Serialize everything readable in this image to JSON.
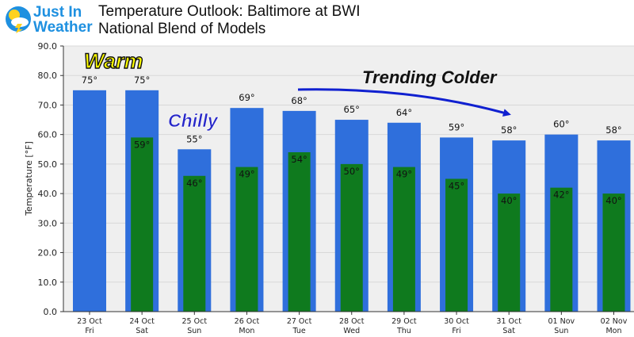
{
  "logo": {
    "line1": "Just In",
    "line2": "Weather"
  },
  "header": {
    "title": "Temperature Outlook: Baltimore at BWI",
    "subtitle": "National Blend of Models"
  },
  "annotations": {
    "warm": "Warm",
    "chilly": "Chilly",
    "trend": "Trending Colder"
  },
  "colors": {
    "high_bar": "#2f6fdc",
    "low_bar": "#0f7a1e",
    "plot_bg": "#efefef",
    "arrow": "#1020d0",
    "warm_text": "#ffff00",
    "chilly_text": "#2828c8",
    "logo_blue": "#1e90e0"
  },
  "chart_data": {
    "type": "bar",
    "ylabel": "Temperature [°F]",
    "ylim": [
      0,
      90
    ],
    "yticks": [
      "0.0",
      "10.0",
      "20.0",
      "30.0",
      "40.0",
      "50.0",
      "60.0",
      "70.0",
      "80.0",
      "90.0"
    ],
    "categories": [
      [
        "23 Oct",
        "Fri"
      ],
      [
        "24 Oct",
        "Sat"
      ],
      [
        "25 Oct",
        "Sun"
      ],
      [
        "26 Oct",
        "Mon"
      ],
      [
        "27 Oct",
        "Tue"
      ],
      [
        "28 Oct",
        "Wed"
      ],
      [
        "29 Oct",
        "Thu"
      ],
      [
        "30 Oct",
        "Fri"
      ],
      [
        "31 Oct",
        "Sat"
      ],
      [
        "01 Nov",
        "Sun"
      ],
      [
        "02 Nov",
        "Mon"
      ]
    ],
    "series": [
      {
        "values": [
          75,
          75,
          55,
          69,
          68,
          65,
          64,
          59,
          58,
          60,
          58
        ],
        "labels": [
          "75°",
          "75°",
          "55°",
          "69°",
          "68°",
          "65°",
          "64°",
          "59°",
          "58°",
          "60°",
          "58°"
        ]
      },
      {
        "values": [
          null,
          59,
          46,
          49,
          54,
          50,
          49,
          45,
          40,
          42,
          40
        ],
        "labels": [
          "",
          "59°",
          "46°",
          "49°",
          "54°",
          "50°",
          "49°",
          "45°",
          "40°",
          "42°",
          "40°"
        ]
      }
    ]
  }
}
